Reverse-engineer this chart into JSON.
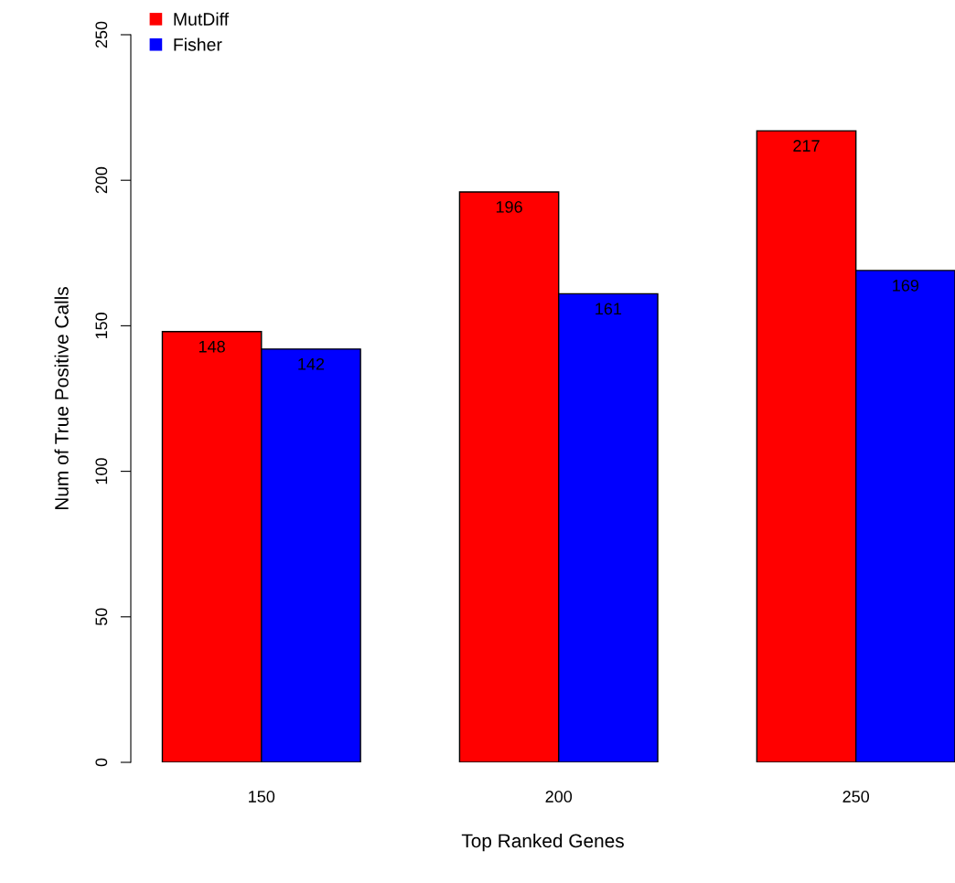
{
  "chart_data": {
    "type": "bar",
    "xlabel": "Top Ranked Genes",
    "ylabel": "Num of True Positive Calls",
    "categories": [
      "150",
      "200",
      "250"
    ],
    "series": [
      {
        "name": "MutDiff",
        "color": "#ff0000",
        "values": [
          148,
          196,
          217
        ]
      },
      {
        "name": "Fisher",
        "color": "#0000ff",
        "values": [
          142,
          161,
          169
        ]
      }
    ],
    "ylim": [
      0,
      250
    ],
    "yticks": [
      0,
      50,
      100,
      150,
      200,
      250
    ],
    "data_labels": true,
    "legend": "top left",
    "grid": false
  }
}
